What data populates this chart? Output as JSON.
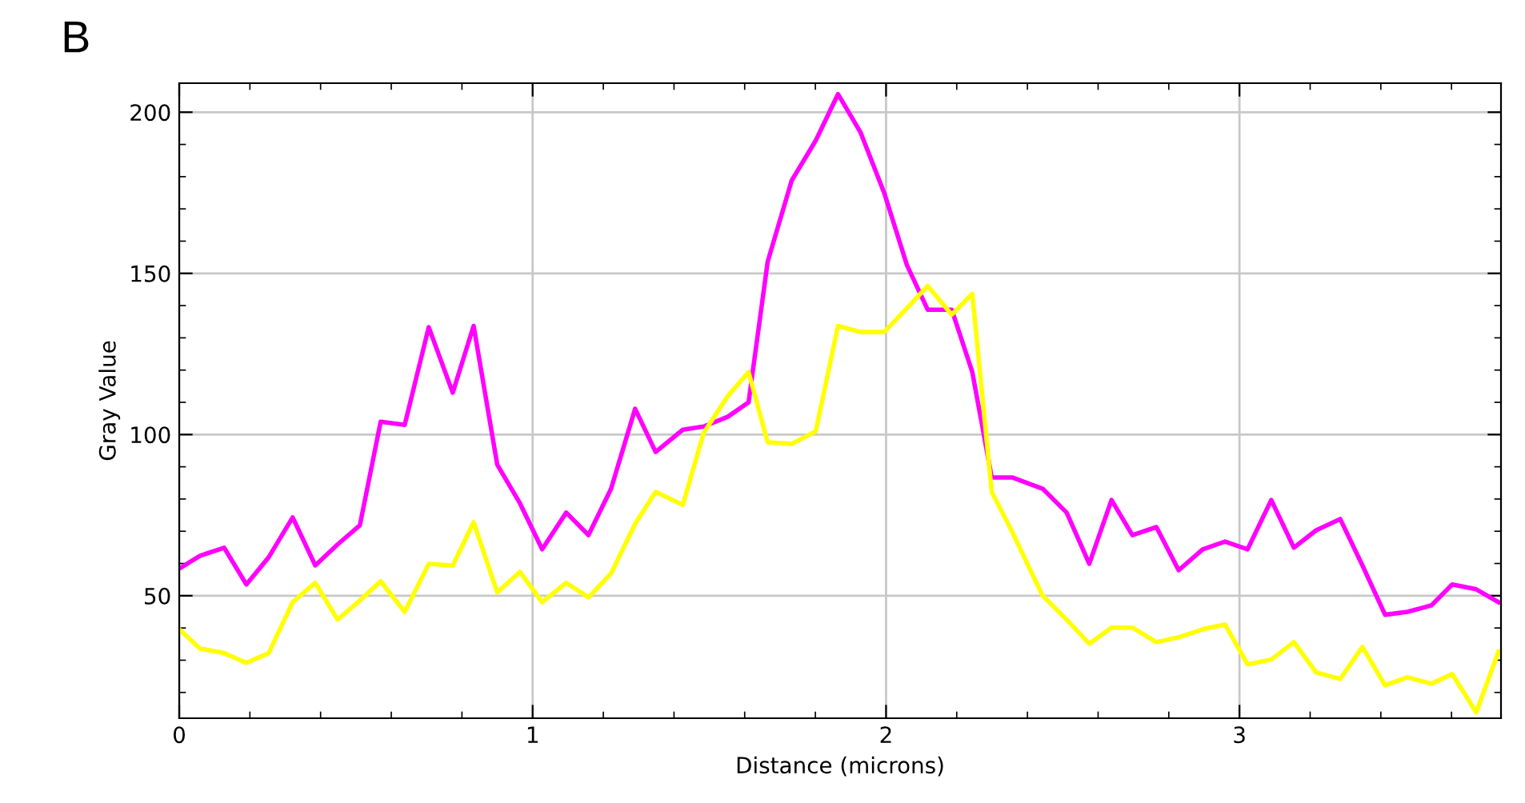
{
  "chart_data": {
    "type": "line",
    "annotations": [
      "B"
    ],
    "xlabel": "Distance (microns)",
    "ylabel": "Gray Value",
    "x": [
      0,
      0.059,
      0.127,
      0.19,
      0.253,
      0.321,
      0.385,
      0.448,
      0.511,
      0.57,
      0.638,
      0.706,
      0.774,
      0.833,
      0.9,
      0.964,
      1.027,
      1.095,
      1.158,
      1.222,
      1.29,
      1.348,
      1.425,
      1.484,
      1.552,
      1.611,
      1.665,
      1.733,
      1.801,
      1.864,
      1.928,
      1.995,
      2.059,
      2.118,
      2.186,
      2.244,
      2.299,
      2.357,
      2.443,
      2.511,
      2.575,
      2.638,
      2.697,
      2.765,
      2.828,
      2.896,
      2.959,
      3.023,
      3.09,
      3.154,
      3.217,
      3.285,
      3.348,
      3.412,
      3.475,
      3.543,
      3.602,
      3.67,
      3.733
    ],
    "series": [
      {
        "color": "#ff00ff",
        "values": [
          58.4,
          62.4,
          64.9,
          53.5,
          61.9,
          74.3,
          59.4,
          65.9,
          71.8,
          104.0,
          103.0,
          133.3,
          113.0,
          133.7,
          90.6,
          78.7,
          64.4,
          75.8,
          68.8,
          83.2,
          108.0,
          94.6,
          101.5,
          102.5,
          105.5,
          110.0,
          153.6,
          178.8,
          191.2,
          205.6,
          193.7,
          174.9,
          152.6,
          138.7,
          138.7,
          119.4,
          86.7,
          86.7,
          83.2,
          75.8,
          59.9,
          79.7,
          68.8,
          71.3,
          57.9,
          64.4,
          66.8,
          64.4,
          79.7,
          64.9,
          70.3,
          73.8,
          59.4,
          44.1,
          45.0,
          47.0,
          53.5,
          52.0,
          48.0
        ]
      },
      {
        "color": "#ffff00",
        "values": [
          39.6,
          33.6,
          32.2,
          29.2,
          32.2,
          48.0,
          54.0,
          42.6,
          48.5,
          54.5,
          45.0,
          59.9,
          59.4,
          72.8,
          51.0,
          57.4,
          48.0,
          54.0,
          49.5,
          56.9,
          72.3,
          82.2,
          78.2,
          100.5,
          111.9,
          119.4,
          97.6,
          97.1,
          101.0,
          133.7,
          131.8,
          131.8,
          139.2,
          146.1,
          137.2,
          143.7,
          82.2,
          69.8,
          50.0,
          42.6,
          35.1,
          40.1,
          40.1,
          35.6,
          37.1,
          39.6,
          41.1,
          28.7,
          30.2,
          35.6,
          26.2,
          24.2,
          34.1,
          22.2,
          24.7,
          22.7,
          25.7,
          13.8,
          32.7
        ]
      }
    ],
    "xlim": [
      0,
      3.74
    ],
    "xticks": [
      0,
      1,
      2,
      3
    ],
    "ylim": [
      12,
      209
    ],
    "yticks": [
      50,
      100,
      150,
      200
    ],
    "grid": true,
    "marker": "none",
    "line_style": "solid"
  }
}
